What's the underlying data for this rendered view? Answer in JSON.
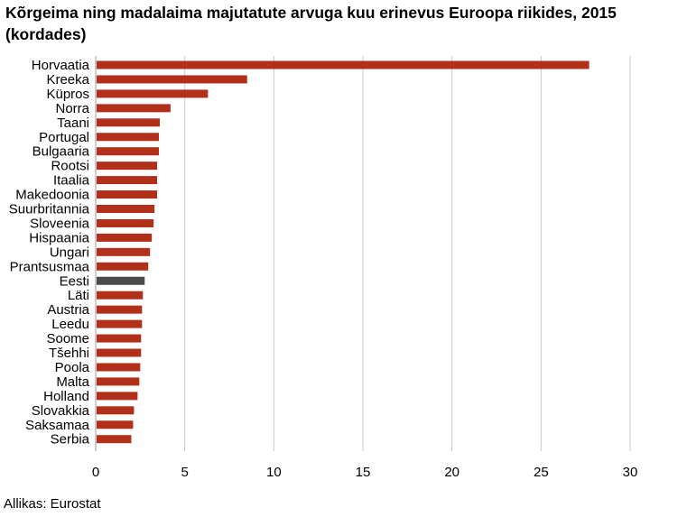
{
  "title": "Kõrgeima ning madalaima majutatute arvuga kuu erinevus Euroopa riikides, 2015 (kordades)",
  "source": "Allikas: Eurostat",
  "colors": {
    "bar": "#b2301a",
    "highlight": "#4a4a4a",
    "grid": "#c9c9c9",
    "axis": "#999999"
  },
  "chart_data": {
    "type": "bar",
    "orientation": "horizontal",
    "title": "Kõrgeima ning madalaima majutatute arvuga kuu erinevus Euroopa riikides, 2015 (kordades)",
    "xlabel": "",
    "ylabel": "",
    "xlim": [
      0,
      30
    ],
    "xticks": [
      0,
      5,
      10,
      15,
      20,
      25,
      30
    ],
    "grid": "vertical",
    "highlight": "Eesti",
    "categories": [
      "Horvaatia",
      "Kreeka",
      "Küpros",
      "Norra",
      "Taani",
      "Portugal",
      "Bulgaaria",
      "Rootsi",
      "Itaalia",
      "Makedoonia",
      "Suurbritannia",
      "Sloveenia",
      "Hispaania",
      "Ungari",
      "Prantsusmaa",
      "Eesti",
      "Läti",
      "Austria",
      "Leedu",
      "Soome",
      "Tšehhi",
      "Poola",
      "Malta",
      "Holland",
      "Slovakkia",
      "Saksamaa",
      "Serbia"
    ],
    "values": [
      27.7,
      8.5,
      6.3,
      4.2,
      3.6,
      3.55,
      3.55,
      3.45,
      3.45,
      3.45,
      3.3,
      3.25,
      3.15,
      3.05,
      2.95,
      2.75,
      2.65,
      2.6,
      2.6,
      2.55,
      2.55,
      2.5,
      2.45,
      2.35,
      2.15,
      2.1,
      2.0
    ]
  }
}
